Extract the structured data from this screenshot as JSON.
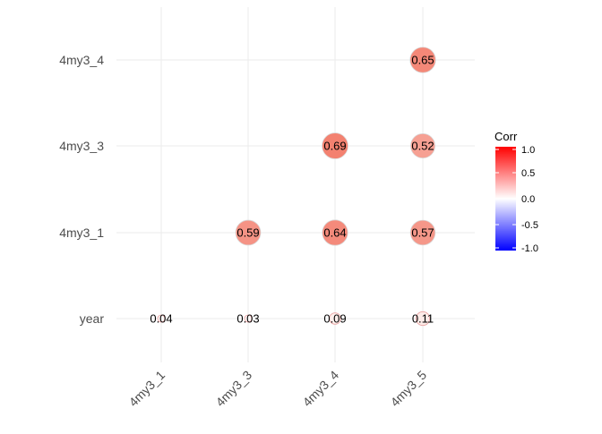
{
  "chart_data": {
    "type": "correlation-bubble-matrix",
    "x_categories": [
      "4my3_1",
      "4my3_3",
      "4my3_4",
      "4my3_5"
    ],
    "y_categories": [
      "year",
      "4my3_1",
      "4my3_3",
      "4my3_4"
    ],
    "cells": [
      {
        "x": "4my3_1",
        "y": "year",
        "value": 0.04,
        "label": "0.04"
      },
      {
        "x": "4my3_3",
        "y": "year",
        "value": 0.03,
        "label": "0.03"
      },
      {
        "x": "4my3_4",
        "y": "year",
        "value": 0.09,
        "label": "0.09"
      },
      {
        "x": "4my3_5",
        "y": "year",
        "value": 0.11,
        "label": "0.11"
      },
      {
        "x": "4my3_3",
        "y": "4my3_1",
        "value": 0.59,
        "label": "0.59"
      },
      {
        "x": "4my3_4",
        "y": "4my3_1",
        "value": 0.64,
        "label": "0.64"
      },
      {
        "x": "4my3_5",
        "y": "4my3_1",
        "value": 0.57,
        "label": "0.57"
      },
      {
        "x": "4my3_4",
        "y": "4my3_3",
        "value": 0.69,
        "label": "0.69"
      },
      {
        "x": "4my3_5",
        "y": "4my3_3",
        "value": 0.52,
        "label": "0.52"
      },
      {
        "x": "4my3_5",
        "y": "4my3_4",
        "value": 0.65,
        "label": "0.65"
      }
    ],
    "legend": {
      "title": "Corr",
      "range": [
        -1,
        1
      ],
      "ticks": [
        1.0,
        0.5,
        0.0,
        -0.5,
        -1.0
      ],
      "tick_labels": [
        "1.0",
        "0.5",
        "0.0",
        "-0.5",
        "-1.0"
      ],
      "colors": {
        "low": "#0000ff",
        "mid": "#ffffff",
        "high": "#ff0000"
      },
      "placement": "right"
    },
    "grid": true,
    "x_tick_rotation": 45
  }
}
